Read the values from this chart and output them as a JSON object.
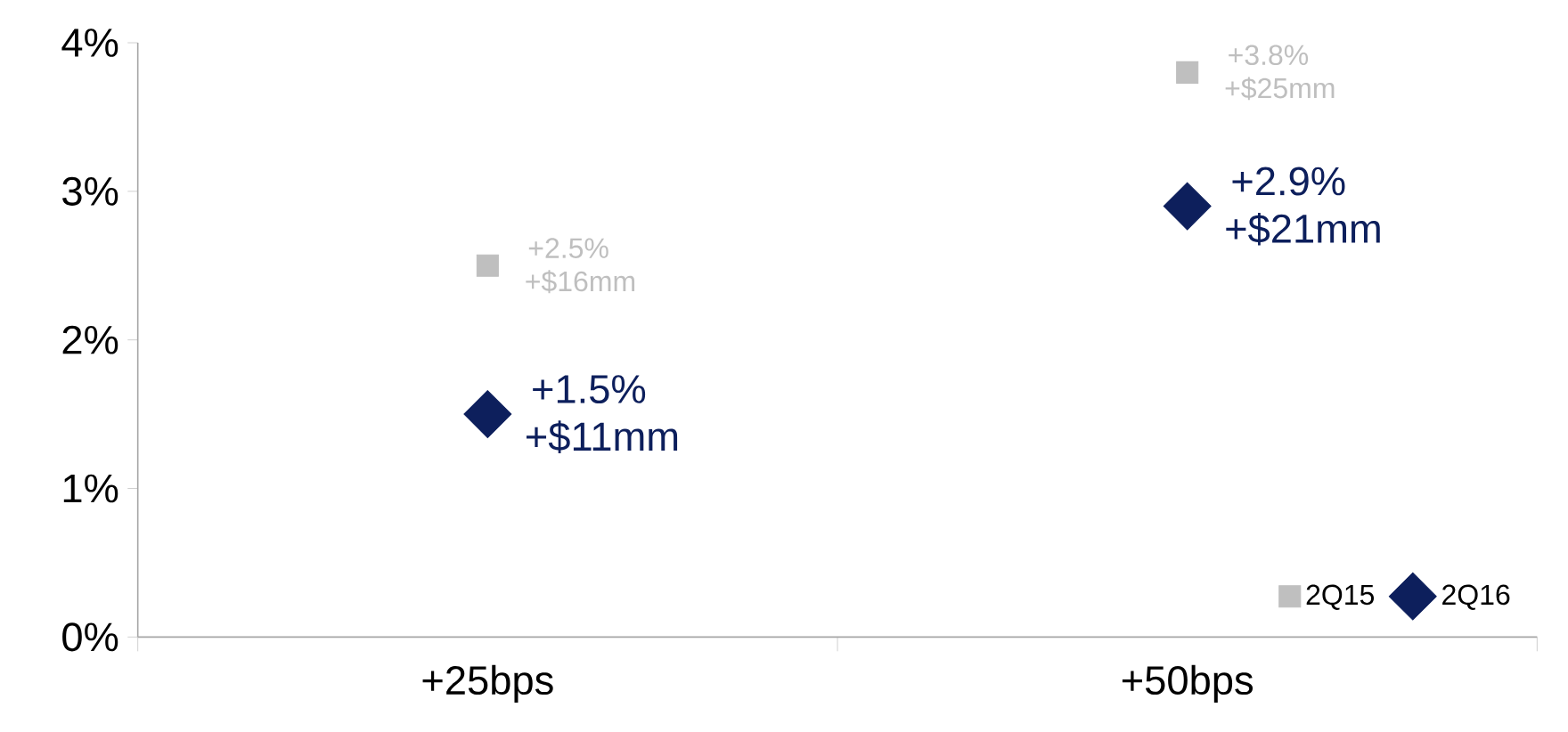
{
  "chart_data": {
    "type": "scatter",
    "categories": [
      "+25bps",
      "+50bps"
    ],
    "ylim": [
      0,
      4
    ],
    "yticks": [
      {
        "value": 0,
        "label": "0%"
      },
      {
        "value": 1,
        "label": "1%"
      },
      {
        "value": 2,
        "label": "2%"
      },
      {
        "value": 3,
        "label": "3%"
      },
      {
        "value": 4,
        "label": "4%"
      }
    ],
    "grid": false,
    "legend": "bottom right",
    "series": [
      {
        "name": "2Q15",
        "color": "#bfbfbf",
        "marker": "square",
        "values": [
          2.5,
          3.8
        ],
        "value_labels": [
          "+2.5% +$16mm",
          "+3.8% +$25mm"
        ]
      },
      {
        "name": "2Q16",
        "color": "#0d1f5c",
        "marker": "diamond",
        "values": [
          1.5,
          2.9
        ],
        "value_labels": [
          "+1.5% +$11mm",
          "+2.9% +$21mm"
        ]
      }
    ]
  }
}
